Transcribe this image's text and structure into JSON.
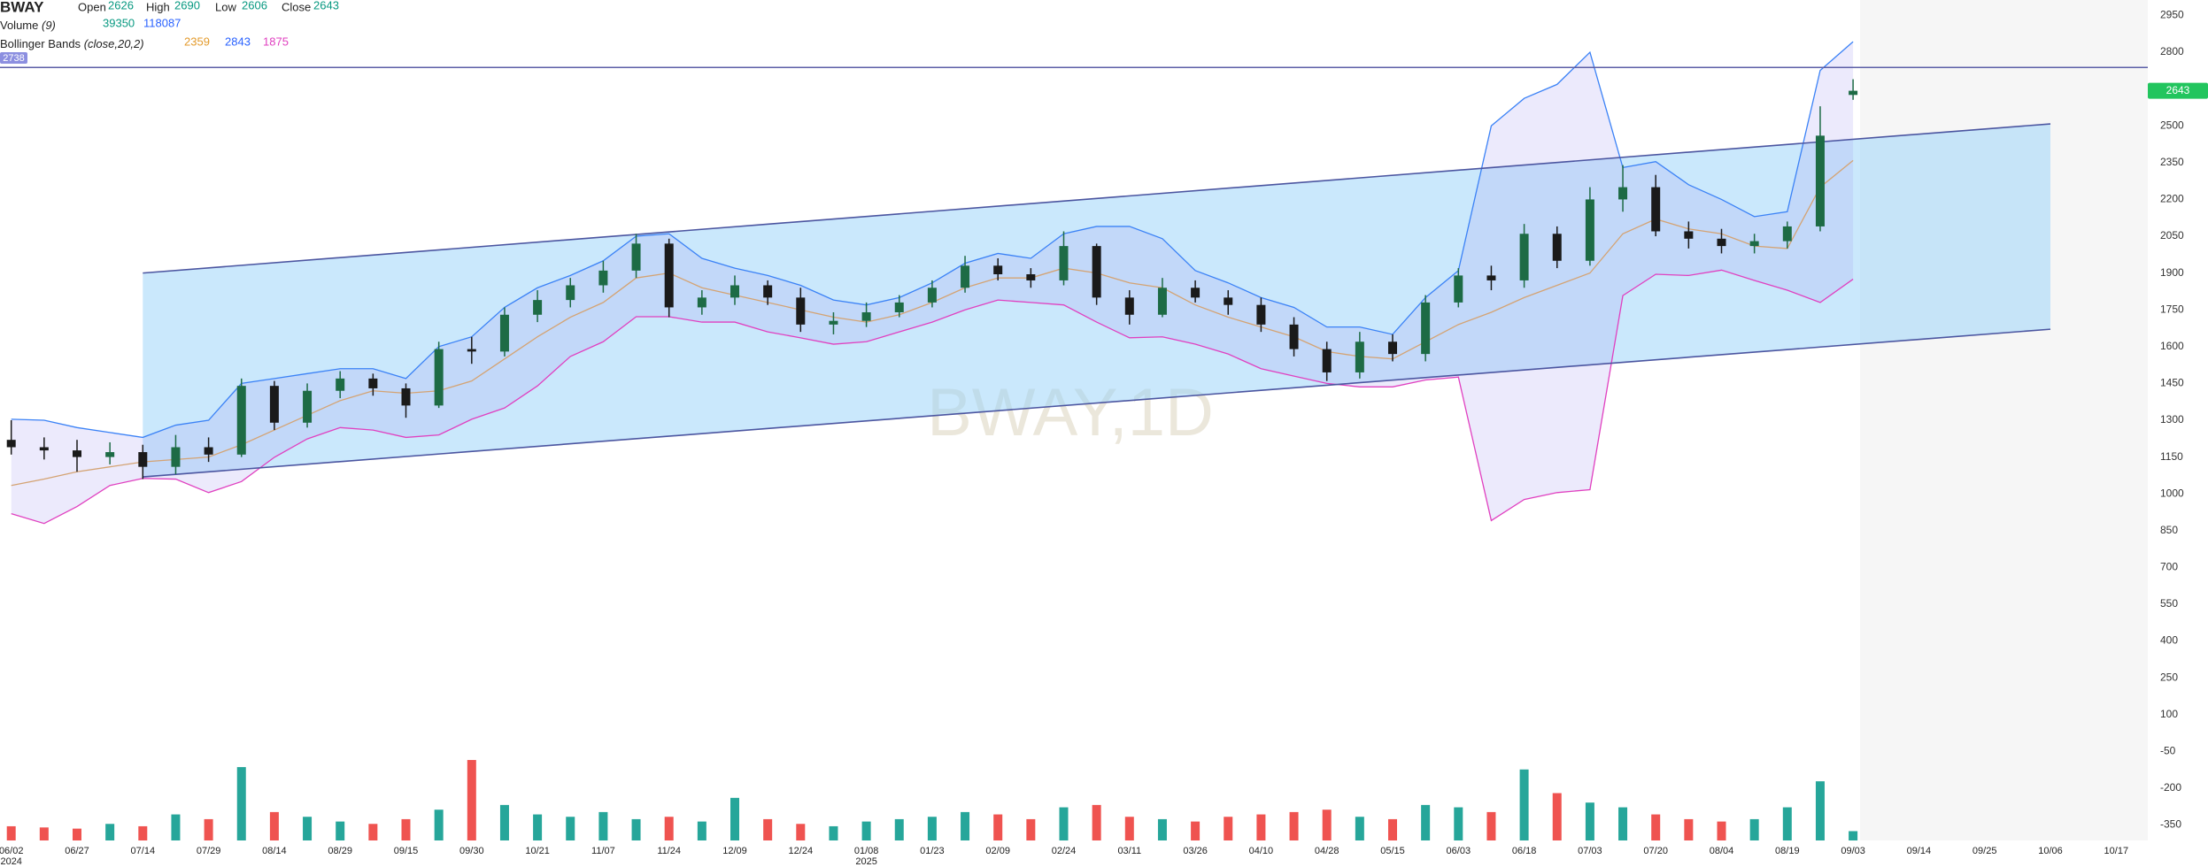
{
  "chart_data": {
    "type": "candlestick",
    "symbol": "BWAY",
    "legend_labels": {
      "open": "Open",
      "high": "High",
      "low": "Low",
      "close": "Close"
    },
    "volume_label": "Volume",
    "volume_params": "(9)",
    "bollinger_label": "Bollinger Bands",
    "bollinger_params": "(close,20,2)",
    "watermark": "BWAY,1D",
    "categories": [
      "06/02",
      null,
      "06/27",
      null,
      "07/14",
      null,
      "07/29",
      null,
      "08/14",
      null,
      "08/29",
      null,
      "09/15",
      null,
      "09/30",
      null,
      "10/21",
      null,
      "11/07",
      null,
      "11/24",
      null,
      "12/09",
      null,
      "12/24",
      null,
      "01/08",
      null,
      "01/23",
      null,
      "02/09",
      null,
      "02/24",
      null,
      "03/11",
      null,
      "03/26",
      null,
      "04/10",
      null,
      "04/28",
      null,
      "05/15",
      null,
      "06/03",
      null,
      "06/18",
      null,
      "07/03",
      null,
      "07/20",
      null,
      "08/04",
      null,
      "08/19",
      null,
      "09/03",
      null,
      "09/14",
      null,
      "09/25",
      null,
      "10/06",
      null,
      "10/17"
    ],
    "year_labels": [
      "2024",
      null,
      null,
      null,
      null,
      null,
      null,
      null,
      null,
      null,
      null,
      null,
      null,
      null,
      null,
      null,
      null,
      null,
      null,
      null,
      null,
      null,
      null,
      null,
      null,
      null,
      "2025",
      null,
      null,
      null,
      null,
      null,
      null,
      null,
      null,
      null,
      null,
      null,
      null,
      null,
      null,
      null,
      null,
      null,
      null,
      null,
      null,
      null,
      null,
      null,
      null,
      null,
      null,
      null,
      null,
      null,
      null,
      null,
      null,
      null,
      null,
      null,
      null,
      null,
      null
    ],
    "open": [
      1220,
      1190,
      1177,
      1150,
      1170,
      1110,
      1190,
      1160,
      1440,
      1290,
      1420,
      1470,
      1430,
      1360,
      1590,
      1580,
      1730,
      1790,
      1850,
      1910,
      2020,
      1760,
      1800,
      1850,
      1800,
      1690,
      1705,
      1740,
      1780,
      1840,
      1930,
      1895,
      1870,
      2010,
      1800,
      1730,
      1840,
      1800,
      1770,
      1690,
      1590,
      1495,
      1620,
      1570,
      1780,
      1890,
      1870,
      2060,
      1950,
      2200,
      2250,
      2070,
      2040,
      2010,
      2030,
      2090,
      2626,
      null,
      null,
      null,
      null,
      null,
      null,
      null,
      null
    ],
    "high": [
      1300,
      1230,
      1220,
      1210,
      1200,
      1240,
      1230,
      1470,
      1460,
      1450,
      1500,
      1490,
      1450,
      1620,
      1640,
      1760,
      1830,
      1880,
      1950,
      2060,
      2040,
      1830,
      1890,
      1870,
      1840,
      1740,
      1780,
      1810,
      1870,
      1970,
      1960,
      1920,
      2070,
      2020,
      1830,
      1880,
      1870,
      1830,
      1800,
      1720,
      1620,
      1660,
      1650,
      1810,
      1920,
      1930,
      2100,
      2090,
      2250,
      2340,
      2300,
      2110,
      2080,
      2060,
      2110,
      2580,
      2690,
      null,
      null,
      null,
      null,
      null,
      null,
      null,
      null
    ],
    "low": [
      1160,
      1140,
      1090,
      1120,
      1060,
      1080,
      1130,
      1150,
      1260,
      1270,
      1390,
      1400,
      1310,
      1350,
      1530,
      1560,
      1700,
      1760,
      1820,
      1880,
      1720,
      1730,
      1770,
      1770,
      1660,
      1650,
      1680,
      1720,
      1760,
      1820,
      1870,
      1840,
      1850,
      1770,
      1690,
      1720,
      1780,
      1730,
      1660,
      1560,
      1460,
      1470,
      1540,
      1540,
      1760,
      1830,
      1840,
      1920,
      1930,
      2150,
      2050,
      2000,
      1980,
      1980,
      2000,
      2070,
      2606,
      null,
      null,
      null,
      null,
      null,
      null,
      null,
      null
    ],
    "close": [
      1190,
      1177,
      1150,
      1170,
      1110,
      1190,
      1160,
      1440,
      1290,
      1420,
      1470,
      1430,
      1360,
      1590,
      1580,
      1730,
      1790,
      1850,
      1910,
      2020,
      1760,
      1800,
      1850,
      1800,
      1690,
      1705,
      1740,
      1780,
      1840,
      1930,
      1895,
      1870,
      2010,
      1800,
      1730,
      1840,
      1800,
      1770,
      1690,
      1590,
      1495,
      1620,
      1570,
      1780,
      1890,
      1870,
      2060,
      1950,
      2200,
      2250,
      2070,
      2040,
      2010,
      2030,
      2090,
      2460,
      2643,
      null,
      null,
      null,
      null,
      null,
      null,
      null,
      null
    ],
    "volume": [
      60000,
      55000,
      50000,
      70000,
      60000,
      110000,
      90000,
      310000,
      120000,
      100000,
      80000,
      70000,
      90000,
      130000,
      340000,
      150000,
      110000,
      100000,
      120000,
      90000,
      100000,
      80000,
      180000,
      90000,
      70000,
      60000,
      80000,
      90000,
      100000,
      120000,
      110000,
      90000,
      140000,
      150000,
      100000,
      90000,
      80000,
      100000,
      110000,
      120000,
      130000,
      100000,
      90000,
      150000,
      140000,
      120000,
      300000,
      200000,
      160000,
      140000,
      110000,
      90000,
      80000,
      90000,
      140000,
      250000,
      39350,
      null,
      null,
      null,
      null,
      null,
      null,
      null,
      null
    ],
    "volume_ma_last": 118087,
    "volume_colors": {
      "up": "#26a69a",
      "down": "#ef5350"
    },
    "candle_colors": {
      "up": "#1d6b45",
      "down": "#1a1a1a"
    },
    "bollinger": {
      "upper": {
        "color": "#3b82f6",
        "values": [
          1304,
          1300,
          1270,
          1250,
          1230,
          1280,
          1300,
          1450,
          1470,
          1490,
          1510,
          1510,
          1470,
          1600,
          1640,
          1760,
          1840,
          1890,
          1950,
          2050,
          2060,
          1960,
          1920,
          1890,
          1850,
          1790,
          1770,
          1800,
          1860,
          1940,
          1980,
          1960,
          2060,
          2090,
          2090,
          2040,
          1910,
          1860,
          1800,
          1760,
          1680,
          1680,
          1650,
          1800,
          1910,
          2500,
          2612,
          2669,
          2800,
          2330,
          2354,
          2260,
          2200,
          2130,
          2150,
          2726,
          2843,
          null,
          null,
          null,
          null,
          null,
          null,
          null,
          null
        ]
      },
      "middle": {
        "color": "#d4a373",
        "values": [
          1034,
          1060,
          1090,
          1110,
          1130,
          1140,
          1150,
          1200,
          1260,
          1320,
          1380,
          1420,
          1410,
          1420,
          1460,
          1550,
          1640,
          1720,
          1780,
          1880,
          1900,
          1840,
          1810,
          1780,
          1750,
          1720,
          1700,
          1730,
          1780,
          1840,
          1880,
          1880,
          1920,
          1900,
          1860,
          1840,
          1770,
          1720,
          1680,
          1640,
          1580,
          1560,
          1550,
          1620,
          1690,
          1740,
          1800,
          1850,
          1900,
          2060,
          2120,
          2080,
          2060,
          2010,
          2000,
          2250,
          2359,
          null,
          null,
          null,
          null,
          null,
          null,
          null,
          null
        ]
      },
      "lower": {
        "color": "#e040c0",
        "values": [
          919,
          879,
          948,
          1034,
          1063,
          1060,
          1005,
          1050,
          1149,
          1224,
          1270,
          1260,
          1230,
          1240,
          1304,
          1350,
          1440,
          1560,
          1620,
          1722,
          1722,
          1700,
          1700,
          1660,
          1636,
          1610,
          1620,
          1660,
          1700,
          1750,
          1790,
          1780,
          1770,
          1700,
          1636,
          1640,
          1610,
          1570,
          1510,
          1480,
          1450,
          1436,
          1436,
          1464,
          1476,
          891,
          977,
          1005,
          1017,
          1808,
          1895,
          1890,
          1912,
          1870,
          1830,
          1780,
          1875,
          null,
          null,
          null,
          null,
          null,
          null,
          null,
          null
        ]
      },
      "fill": "rgba(170,160,240,0.22)"
    },
    "channel": {
      "from": "07/14",
      "to": "10/06",
      "upper": [
        1900,
        2508
      ],
      "lower": [
        1069,
        1671
      ],
      "color": "#4b55a0",
      "fill": "rgba(150,210,250,0.5)"
    },
    "hline": {
      "value": 2738,
      "color": "#5b5ea6"
    },
    "ylim": [
      -413,
      3013
    ],
    "yticks": [
      2950,
      2800,
      2500,
      2350,
      2200,
      2050,
      1900,
      1750,
      1600,
      1450,
      1300,
      1150,
      1000,
      850,
      700,
      550,
      400,
      250,
      100,
      -50,
      -200,
      -350
    ],
    "vlim": [
      0,
      400000
    ],
    "grid": false
  }
}
